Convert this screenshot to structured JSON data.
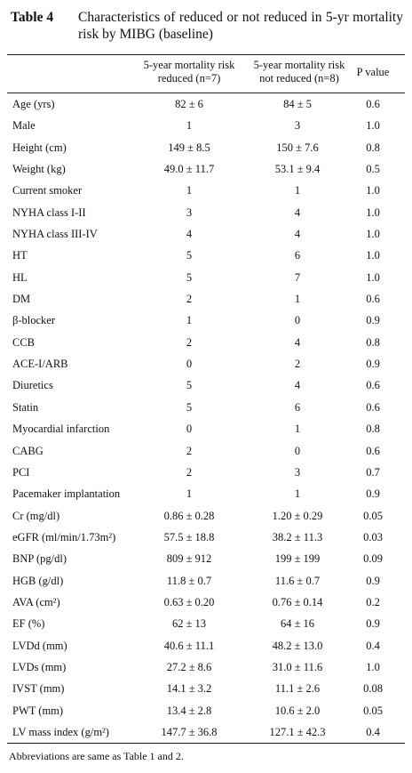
{
  "title": {
    "label": "Table 4",
    "text": "Characteristics of reduced or not reduced in 5-yr mortality risk by MIBG (baseline)"
  },
  "table": {
    "header": [
      [
        "5-year mortality risk",
        "reduced (n=7)"
      ],
      [
        "5-year mortality risk",
        "not reduced (n=8)"
      ],
      [
        "P value"
      ]
    ],
    "rows": [
      [
        "Age (yrs)",
        "82 ± 6",
        "84 ± 5",
        "0.6"
      ],
      [
        "Male",
        "1",
        "3",
        "1.0"
      ],
      [
        "Height (cm)",
        "149 ± 8.5",
        "150 ± 7.6",
        "0.8"
      ],
      [
        "Weight (kg)",
        "49.0 ± 11.7",
        "53.1 ± 9.4",
        "0.5"
      ],
      [
        "Current smoker",
        "1",
        "1",
        "1.0"
      ],
      [
        "NYHA class I-II",
        "3",
        "4",
        "1.0"
      ],
      [
        "NYHA class III-IV",
        "4",
        "4",
        "1.0"
      ],
      [
        "HT",
        "5",
        "6",
        "1.0"
      ],
      [
        "HL",
        "5",
        "7",
        "1.0"
      ],
      [
        "DM",
        "2",
        "1",
        "0.6"
      ],
      [
        "β-blocker",
        "1",
        "0",
        "0.9"
      ],
      [
        "CCB",
        "2",
        "4",
        "0.8"
      ],
      [
        "ACE-I/ARB",
        "0",
        "2",
        "0.9"
      ],
      [
        "Diuretics",
        "5",
        "4",
        "0.6"
      ],
      [
        "Statin",
        "5",
        "6",
        "0.6"
      ],
      [
        "Myocardial infarction",
        "0",
        "1",
        "0.8"
      ],
      [
        "CABG",
        "2",
        "0",
        "0.6"
      ],
      [
        "PCI",
        "2",
        "3",
        "0.7"
      ],
      [
        "Pacemaker implantation",
        "1",
        "1",
        "0.9"
      ],
      [
        "Cr (mg/dl)",
        "0.86 ± 0.28",
        "1.20 ± 0.29",
        "0.05"
      ],
      [
        "eGFR (ml/min/1.73m²)",
        "57.5 ± 18.8",
        "38.2 ± 11.3",
        "0.03"
      ],
      [
        "BNP (pg/dl)",
        "809 ± 912",
        "199 ± 199",
        "0.09"
      ],
      [
        "HGB (g/dl)",
        "11.8 ± 0.7",
        "11.6 ± 0.7",
        "0.9"
      ],
      [
        "AVA (cm²)",
        "0.63 ± 0.20",
        "0.76 ± 0.14",
        "0.2"
      ],
      [
        "EF (%)",
        "62 ± 13",
        "64 ± 16",
        "0.9"
      ],
      [
        "LVDd (mm)",
        "40.6 ± 11.1",
        "48.2 ± 13.0",
        "0.4"
      ],
      [
        "LVDs (mm)",
        "27.2 ± 8.6",
        "31.0 ± 11.6",
        "1.0"
      ],
      [
        "IVST (mm)",
        "14.1 ± 3.2",
        "11.1 ± 2.6",
        "0.08"
      ],
      [
        "PWT (mm)",
        "13.4 ± 2.8",
        "10.6 ± 2.0",
        "0.05"
      ],
      [
        "LV mass index (g/m²)",
        "147.7 ± 36.8",
        "127.1 ± 42.3",
        "0.4"
      ]
    ]
  },
  "footnote": "Abbreviations are same as Table 1 and 2."
}
